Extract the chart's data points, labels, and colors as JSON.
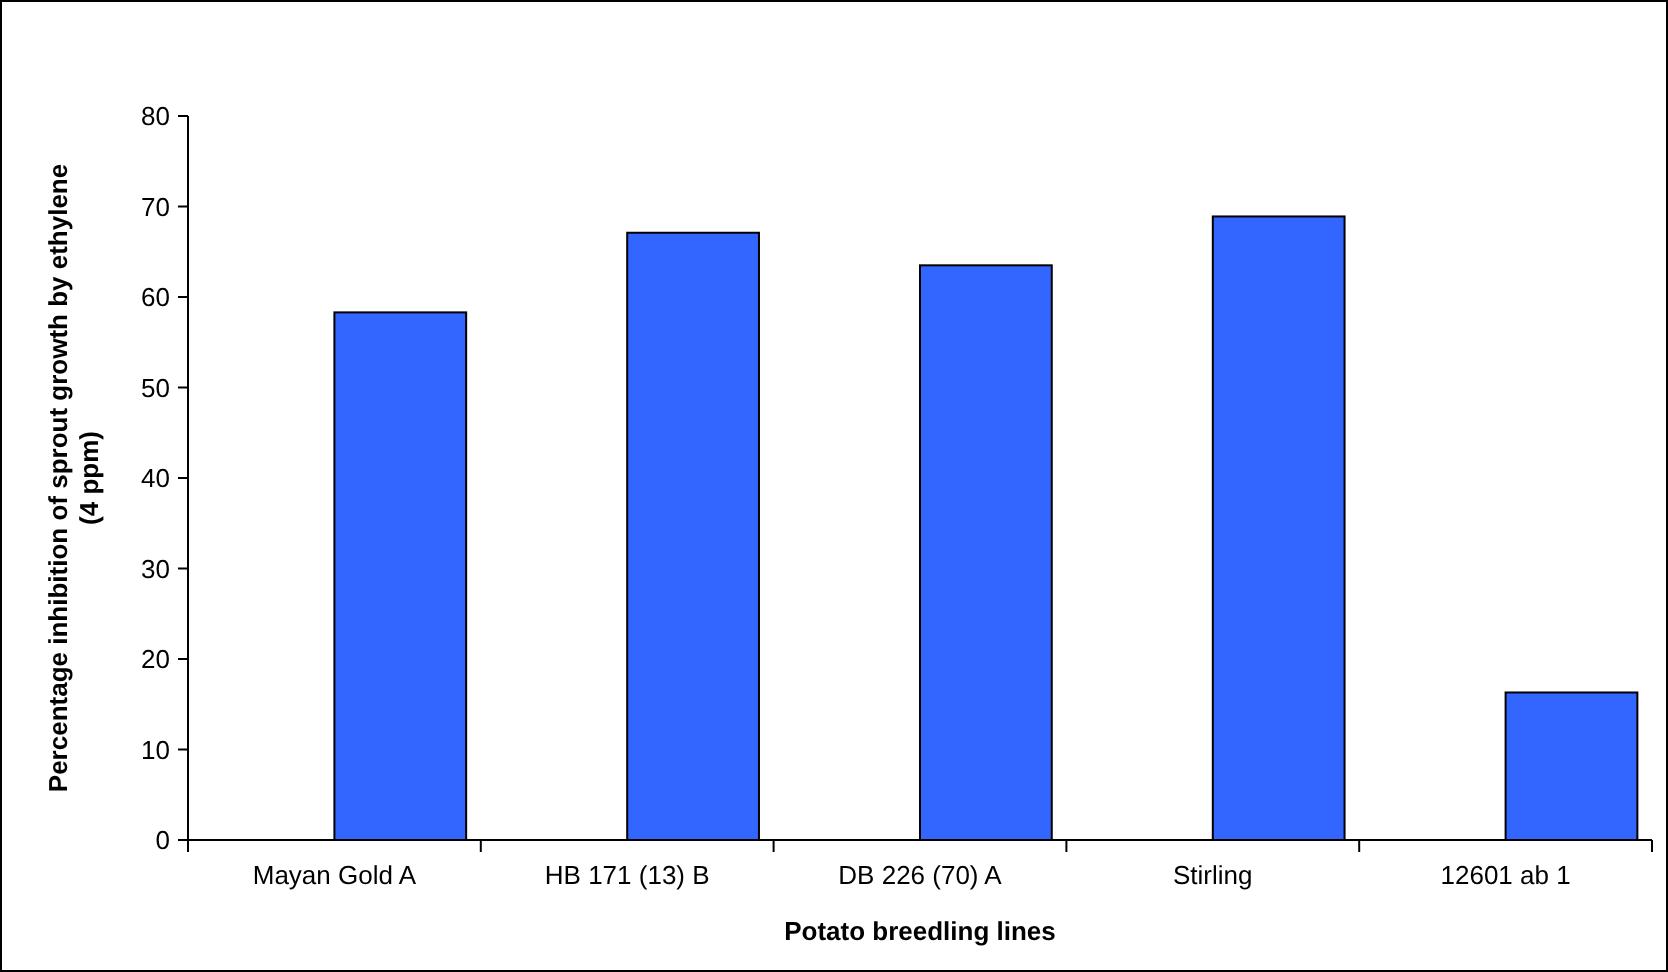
{
  "chart_data": {
    "type": "bar",
    "xlabel": "Potato breedling lines",
    "ylabel": "Percentage inhibition of sprout growth by ethylene (4 ppm)",
    "categories": [
      "Mayan Gold A",
      "HB 171 (13) B",
      "DB 226 (70) A",
      "Stirling",
      "12601 ab 1"
    ],
    "values": [
      58.3,
      67.1,
      63.5,
      68.9,
      16.3
    ],
    "color": "#3366ff",
    "ylim": [
      0,
      80
    ],
    "yticks": [
      0,
      10,
      20,
      30,
      40,
      50,
      60,
      70,
      80
    ],
    "grid": false
  }
}
